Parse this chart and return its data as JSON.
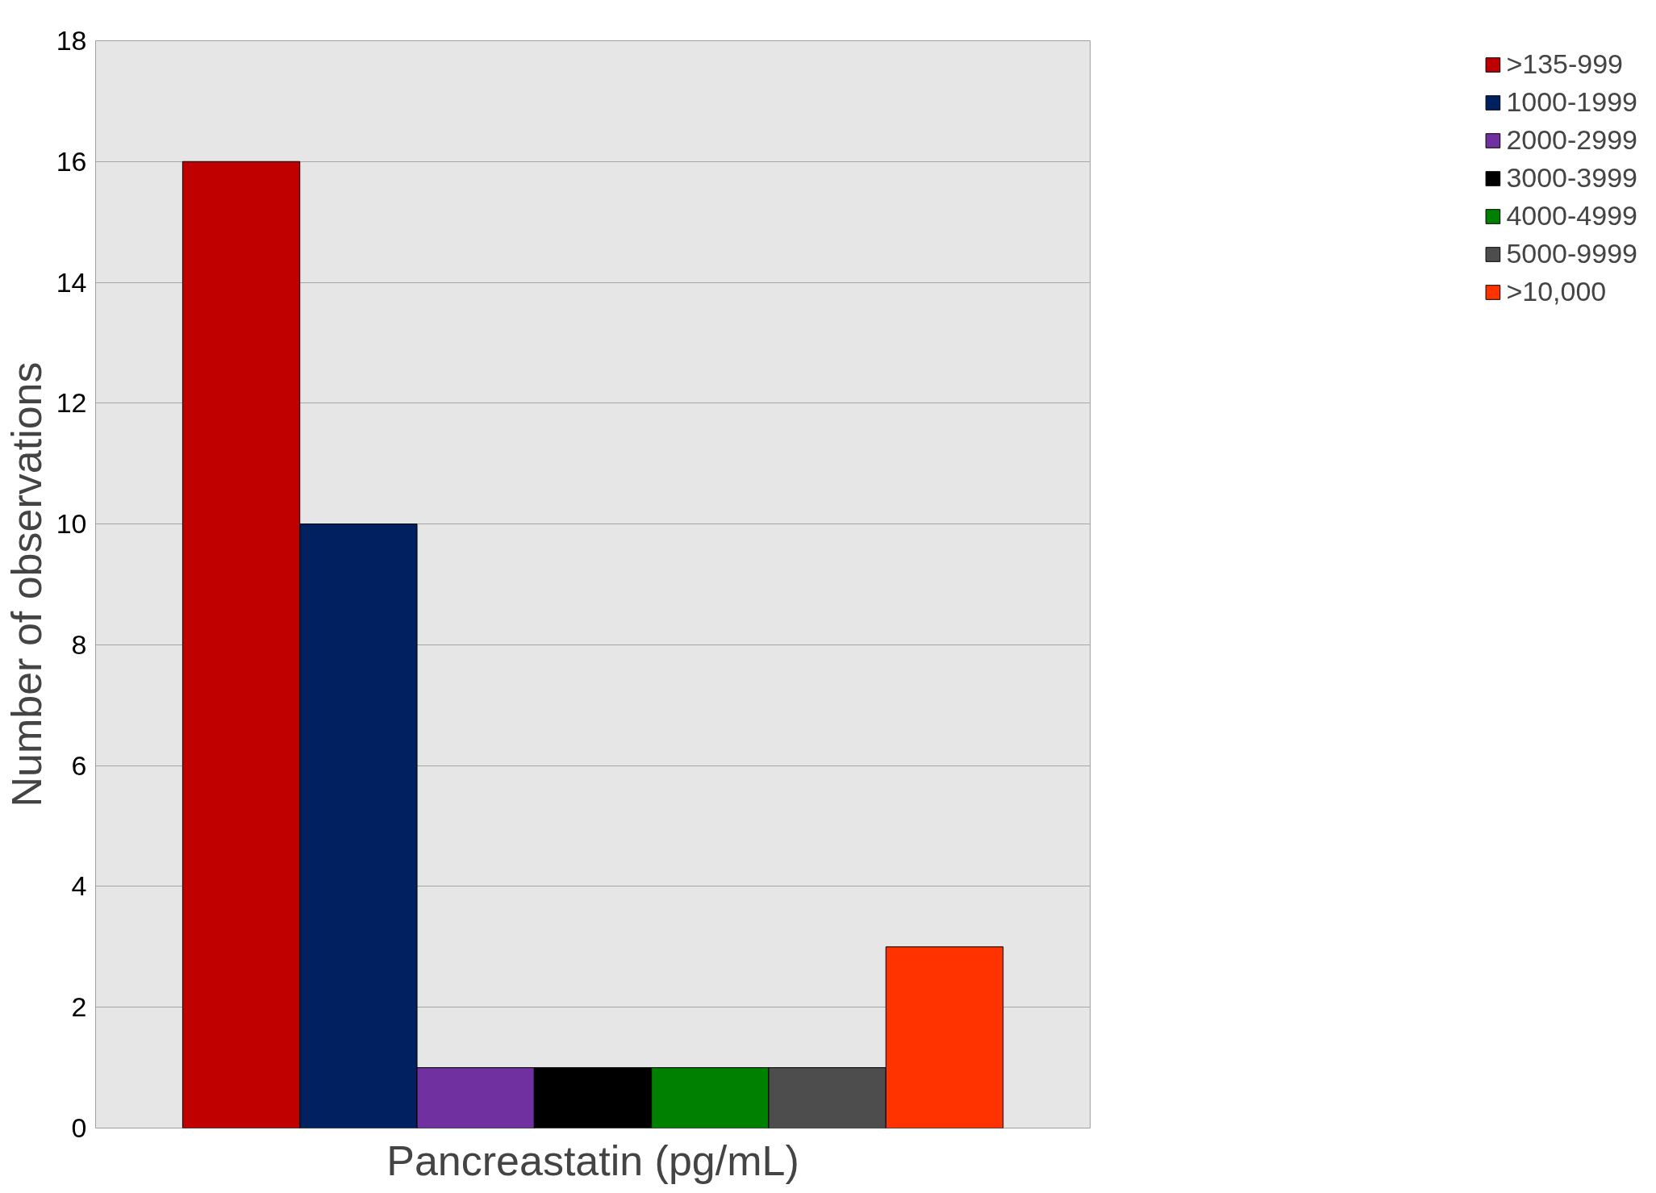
{
  "chart_data": {
    "type": "bar",
    "xlabel": "Pancreastatin (pg/mL)",
    "ylabel": "Number of observations",
    "categories": [
      null
    ],
    "series": [
      {
        "name": ">135-999",
        "color": "#c00000",
        "values": [
          16
        ]
      },
      {
        "name": "1000-1999",
        "color": "#002060",
        "values": [
          10
        ]
      },
      {
        "name": "2000-2999",
        "color": "#7030a0",
        "values": [
          1
        ]
      },
      {
        "name": "3000-3999",
        "color": "#000000",
        "values": [
          1
        ]
      },
      {
        "name": "4000-4999",
        "color": "#008000",
        "values": [
          1
        ]
      },
      {
        "name": "5000-9999",
        "color": "#4d4d4d",
        "values": [
          1
        ]
      },
      {
        "name": ">10,000",
        "color": "#ff3300",
        "values": [
          3
        ]
      }
    ],
    "ylim": [
      0,
      18
    ],
    "yticks": [
      0,
      2,
      4,
      6,
      8,
      10,
      12,
      14,
      16,
      18
    ],
    "grid": "y",
    "legend": "right"
  }
}
